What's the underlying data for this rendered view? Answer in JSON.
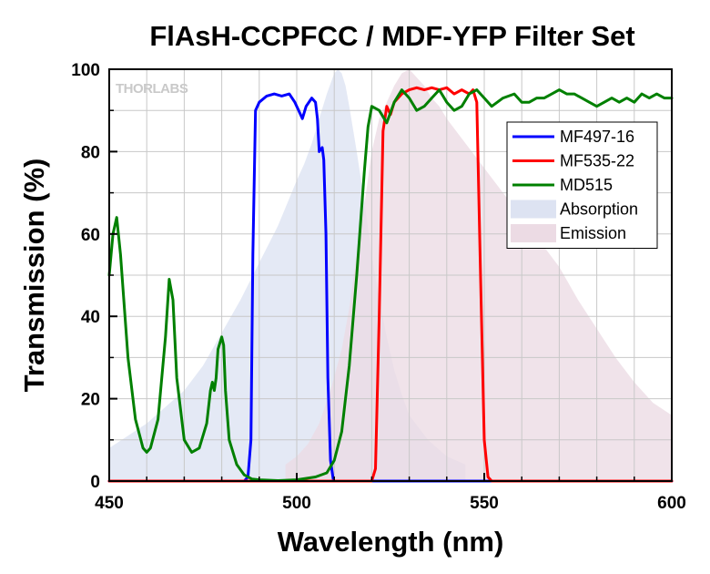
{
  "chart_data": {
    "type": "line",
    "title": "FlAsH-CCPFCC / MDF-YFP Filter Set",
    "xlabel": "Wavelength (nm)",
    "ylabel": "Transmission (%)",
    "xlim": [
      450,
      600
    ],
    "ylim": [
      0,
      100
    ],
    "xticks": [
      450,
      500,
      550,
      600
    ],
    "yticks": [
      0,
      20,
      40,
      60,
      80,
      100
    ],
    "x_tick_labels": [
      "450",
      "500",
      "550",
      "600"
    ],
    "y_tick_labels": [
      "0",
      "20",
      "40",
      "60",
      "80",
      "100"
    ],
    "grid": true,
    "legend_position": "right",
    "logo_text": "THORLABS",
    "series": [
      {
        "name": "MF497-16",
        "kind": "line",
        "color": "#0000ff",
        "x": [
          450,
          486,
          487,
          487.8,
          488.3,
          489,
          490,
          492,
          494,
          496,
          498,
          499.5,
          500.5,
          501.5,
          502.5,
          504,
          505,
          505.5,
          506,
          506.8,
          507.2,
          507.8,
          508.3,
          509,
          509.8,
          512,
          600
        ],
        "y": [
          0,
          0,
          1,
          10,
          55,
          90,
          92,
          93.5,
          94,
          93.5,
          94,
          92,
          90,
          88,
          91,
          93,
          92,
          88,
          80,
          81,
          78,
          60,
          25,
          5,
          0,
          0,
          0
        ]
      },
      {
        "name": "MF535-22",
        "kind": "line",
        "color": "#ff0000",
        "x": [
          450,
          520,
          521,
          522,
          523,
          524,
          525,
          526,
          528,
          530,
          532,
          534,
          536,
          538,
          540,
          542,
          544,
          546,
          547,
          548,
          549,
          550,
          551,
          552,
          600
        ],
        "y": [
          0,
          0,
          3,
          40,
          85,
          91,
          89,
          92,
          94,
          95,
          95.5,
          95,
          95.5,
          95,
          95.5,
          94,
          95,
          94,
          95,
          92,
          50,
          10,
          1,
          0,
          0
        ]
      },
      {
        "name": "MD515",
        "kind": "line",
        "color": "#008000",
        "x": [
          450,
          451,
          452,
          453,
          455,
          457,
          459,
          460,
          461,
          463,
          465,
          466,
          467,
          468,
          470,
          472,
          474,
          476,
          477,
          477.5,
          478,
          478.5,
          479,
          480,
          480.5,
          481,
          482,
          484,
          486,
          488,
          490,
          495,
          500,
          505,
          508,
          510,
          512,
          514,
          516,
          518,
          519,
          520,
          522,
          524,
          526,
          528,
          530,
          532,
          534,
          536,
          538,
          540,
          542,
          544,
          546,
          548,
          550,
          552,
          555,
          558,
          560,
          562,
          564,
          566,
          568,
          570,
          572,
          574,
          576,
          578,
          580,
          582,
          584,
          586,
          588,
          590,
          592,
          594,
          596,
          598,
          600
        ],
        "y": [
          50,
          60,
          64,
          55,
          30,
          15,
          8,
          7,
          8,
          15,
          35,
          49,
          44,
          25,
          10,
          7,
          8,
          14,
          22,
          24,
          22,
          25,
          32,
          35,
          33,
          22,
          10,
          4,
          1.5,
          0.5,
          0.3,
          0.1,
          0.3,
          1,
          2,
          5,
          12,
          28,
          50,
          75,
          86,
          91,
          90,
          87,
          92,
          95,
          93,
          90,
          91,
          93,
          95,
          92,
          90,
          91,
          94,
          95,
          93,
          91,
          93,
          94,
          92,
          92,
          93,
          93,
          94,
          95,
          94,
          94,
          93,
          92,
          91,
          92,
          93,
          92,
          93,
          92,
          94,
          93,
          94,
          93,
          93
        ]
      },
      {
        "name": "Absorption",
        "kind": "area",
        "color": "#dde3f2",
        "x": [
          450,
          455,
          460,
          465,
          470,
          475,
          480,
          485,
          490,
          495,
          500,
          502,
          504,
          506,
          508,
          510,
          511,
          512,
          513,
          514,
          516,
          518,
          520,
          522,
          524,
          526,
          528,
          530,
          535,
          540,
          545
        ],
        "y": [
          8,
          11,
          14,
          18,
          22,
          28,
          36,
          44,
          53,
          62,
          73,
          77,
          82,
          88,
          94,
          99,
          100,
          99,
          96,
          91,
          80,
          68,
          55,
          44,
          35,
          27,
          21,
          16,
          10,
          6,
          4
        ]
      },
      {
        "name": "Emission",
        "kind": "area",
        "color": "#ecdbe4",
        "x": [
          497,
          500,
          503,
          506,
          509,
          512,
          514,
          516,
          518,
          520,
          522,
          524,
          526,
          528,
          530,
          532,
          534,
          536,
          538,
          540,
          545,
          550,
          555,
          560,
          565,
          570,
          575,
          580,
          585,
          590,
          595,
          600
        ],
        "y": [
          4,
          6,
          9,
          14,
          22,
          32,
          42,
          55,
          67,
          80,
          88,
          92,
          96,
          99,
          100,
          98,
          96,
          93,
          91,
          88,
          82,
          76,
          70,
          64,
          58,
          52,
          44,
          37,
          30,
          24,
          19,
          16
        ]
      }
    ]
  }
}
